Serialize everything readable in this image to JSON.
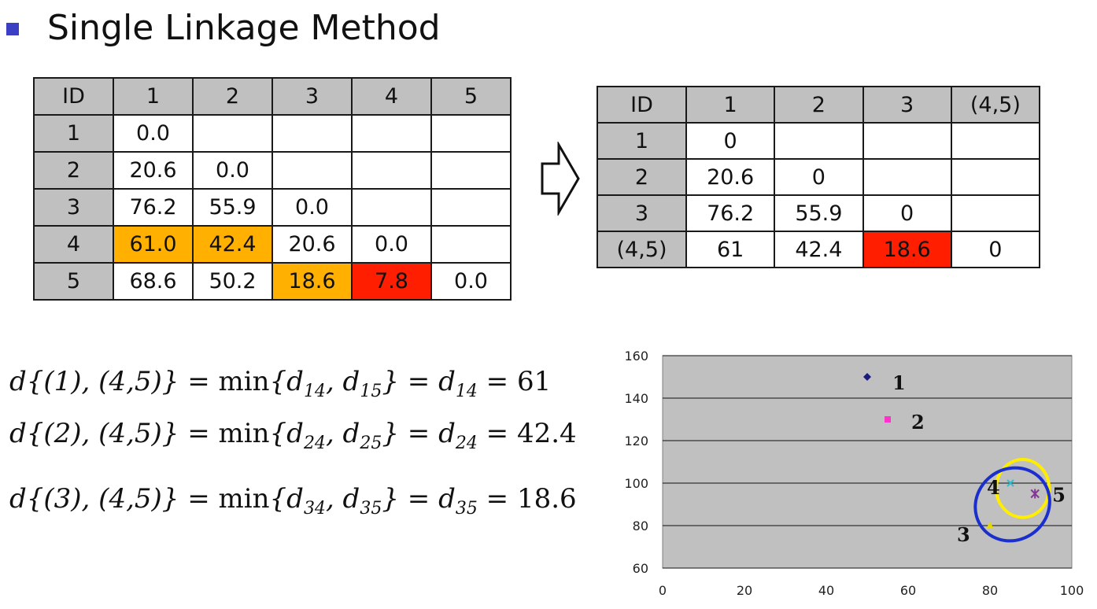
{
  "slide": {
    "title": "Single Linkage Method"
  },
  "table1": {
    "header": [
      "ID",
      "1",
      "2",
      "3",
      "4",
      "5"
    ],
    "rows": [
      [
        "1",
        "0.0",
        "",
        "",
        "",
        ""
      ],
      [
        "2",
        "20.6",
        "0.0",
        "",
        "",
        ""
      ],
      [
        "3",
        "76.2",
        "55.9",
        "0.0",
        "",
        ""
      ],
      [
        "4",
        "61.0",
        "42.4",
        "20.6",
        "0.0",
        ""
      ],
      [
        "5",
        "68.6",
        "50.2",
        "18.6",
        "7.8",
        "0.0"
      ]
    ],
    "highlight_orange": "#ffb000",
    "highlight_red": "#ff1e00"
  },
  "table2": {
    "header": [
      "ID",
      "1",
      "2",
      "3",
      "(4,5)"
    ],
    "rows": [
      [
        "1",
        "0",
        "",
        "",
        ""
      ],
      [
        "2",
        "20.6",
        "0",
        "",
        ""
      ],
      [
        "3",
        "76.2",
        "55.9",
        "0",
        ""
      ],
      [
        "(4,5)",
        "61",
        "42.4",
        "18.6",
        "0"
      ]
    ]
  },
  "formulas": {
    "f1": {
      "lhs": "d{(1), (4,5)}",
      "d_a": "14",
      "d_b": "15",
      "d_min": "14",
      "value": "61"
    },
    "f2": {
      "lhs": "d{(2), (4,5)}",
      "d_a": "24",
      "d_b": "25",
      "d_min": "24",
      "value": "42.4"
    },
    "f3": {
      "lhs": "d{(3), (4,5)}",
      "d_a": "34",
      "d_b": "35",
      "d_min": "35",
      "value": "18.6"
    }
  },
  "chart_data": {
    "type": "scatter",
    "xlim": [
      0,
      100
    ],
    "ylim": [
      60,
      160
    ],
    "x_ticks": [
      "0",
      "20",
      "40",
      "60",
      "80",
      "100"
    ],
    "y_ticks": [
      "60",
      "80",
      "100",
      "120",
      "140",
      "160"
    ],
    "grid": "horizontal",
    "points": [
      {
        "label": "1",
        "x": 50,
        "y": 150,
        "marker": "diamond",
        "color": "#1a1a80"
      },
      {
        "label": "2",
        "x": 55,
        "y": 130,
        "marker": "square",
        "color": "#ff33cc"
      },
      {
        "label": "3",
        "x": 80,
        "y": 80,
        "marker": "triangle",
        "color": "#e6d800"
      },
      {
        "label": "4",
        "x": 85,
        "y": 100,
        "marker": "x",
        "color": "#33bbcc"
      },
      {
        "label": "5",
        "x": 91,
        "y": 95,
        "marker": "star",
        "color": "#883399"
      }
    ],
    "clusters": [
      {
        "members": [
          "4",
          "5"
        ],
        "color": "#ffee00"
      },
      {
        "members": [
          "3",
          "4",
          "5"
        ],
        "color": "#1a2fcc"
      }
    ]
  }
}
